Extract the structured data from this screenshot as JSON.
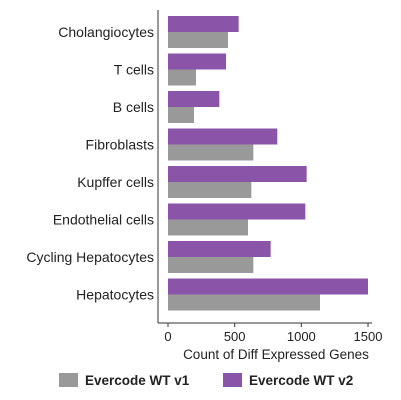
{
  "chart_data": {
    "type": "bar",
    "orientation": "horizontal",
    "categories": [
      "Cholangiocytes",
      "T cells",
      "B cells",
      "Fibroblasts",
      "Kupffer cells",
      "Endothelial cells",
      "Cycling Hepatocytes",
      "Hepatocytes"
    ],
    "series": [
      {
        "name": "Evercode WT v1",
        "color": "#999999",
        "values": [
          450,
          210,
          195,
          640,
          625,
          600,
          640,
          1140
        ]
      },
      {
        "name": "Evercode WT v2",
        "color": "#8a55a8",
        "values": [
          530,
          435,
          385,
          820,
          1040,
          1030,
          770,
          1500
        ]
      }
    ],
    "xlabel": "Count of Diff Expressed Genes",
    "ylabel": "",
    "title": "",
    "xlim": [
      0,
      1500
    ],
    "xticks": [
      0,
      500,
      1000,
      1500
    ],
    "grid": false,
    "legend_position": "bottom"
  }
}
